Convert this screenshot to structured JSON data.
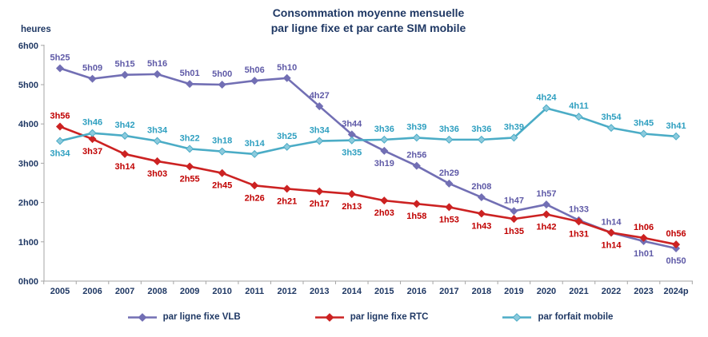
{
  "title": {
    "line1": "Consommation moyenne mensuelle",
    "line2": "par ligne fixe et par carte SIM mobile"
  },
  "colors": {
    "title_text": "#1F3864",
    "axis_text": "#1F3864",
    "axis_line": "#A6A6A6"
  },
  "chart_data": {
    "type": "line",
    "title": "Consommation moyenne mensuelle par ligne fixe et par carte SIM mobile",
    "ylabel": "heures",
    "xlabel": "",
    "grid": false,
    "legend_position": "bottom",
    "ylim_hours": [
      0,
      6
    ],
    "y_ticks": [
      "6h00",
      "5h00",
      "4h00",
      "3h00",
      "2h00",
      "1h00",
      "0h00"
    ],
    "categories": [
      "2005",
      "2006",
      "2007",
      "2008",
      "2009",
      "2010",
      "2011",
      "2012",
      "2013",
      "2014",
      "2015",
      "2016",
      "2017",
      "2018",
      "2019",
      "2020",
      "2021",
      "2022",
      "2023",
      "2024p"
    ],
    "series": [
      {
        "id": "ligne-fixe-vlb",
        "name": "par ligne fixe VLB",
        "color": "#726FB4",
        "label_color": "#5F5AA7",
        "marker_fill": "#726FB4",
        "values": [
          "5h25",
          "5h09",
          "5h15",
          "5h16",
          "5h01",
          "5h00",
          "5h06",
          "5h10",
          "4h27",
          "3h44",
          "3h19",
          "2h56",
          "2h29",
          "2h08",
          "1h47",
          "1h57",
          "1h33",
          "1h14",
          "1h01",
          "0h50"
        ],
        "label_side": [
          "above",
          "above",
          "above",
          "above",
          "above",
          "above",
          "above",
          "above",
          "above",
          "above",
          "below",
          "above",
          "above",
          "above",
          "above",
          "above",
          "above",
          "above",
          "below",
          "below"
        ]
      },
      {
        "id": "ligne-fixe-rtc",
        "name": "par ligne fixe RTC",
        "color": "#CC2222",
        "label_color": "#C00000",
        "marker_fill": "#CC2222",
        "values": [
          "3h56",
          "3h37",
          "3h14",
          "3h03",
          "2h55",
          "2h45",
          "2h26",
          "2h21",
          "2h17",
          "2h13",
          "2h03",
          "1h58",
          "1h53",
          "1h43",
          "1h35",
          "1h42",
          "1h31",
          "1h14",
          "1h06",
          "0h56"
        ],
        "label_side": [
          "above",
          "below",
          "below",
          "below",
          "below",
          "below",
          "below",
          "below",
          "below",
          "below",
          "below",
          "below",
          "below",
          "below",
          "below",
          "below",
          "below",
          "below",
          "above",
          "above"
        ]
      },
      {
        "id": "forfait-mobile",
        "name": "par forfait mobile",
        "color": "#4BACC6",
        "label_color": "#2E9FC0",
        "marker_fill": "#8CCADD",
        "values": [
          "3h34",
          "3h46",
          "3h42",
          "3h34",
          "3h22",
          "3h18",
          "3h14",
          "3h25",
          "3h34",
          "3h35",
          "3h36",
          "3h39",
          "3h36",
          "3h36",
          "3h39",
          "4h24",
          "4h11",
          "3h54",
          "3h45",
          "3h41"
        ],
        "label_side": [
          "below",
          "above",
          "above",
          "above",
          "above",
          "above",
          "above",
          "above",
          "above",
          "below",
          "above",
          "above",
          "above",
          "above",
          "above",
          "above",
          "above",
          "above",
          "above",
          "above"
        ]
      }
    ]
  }
}
